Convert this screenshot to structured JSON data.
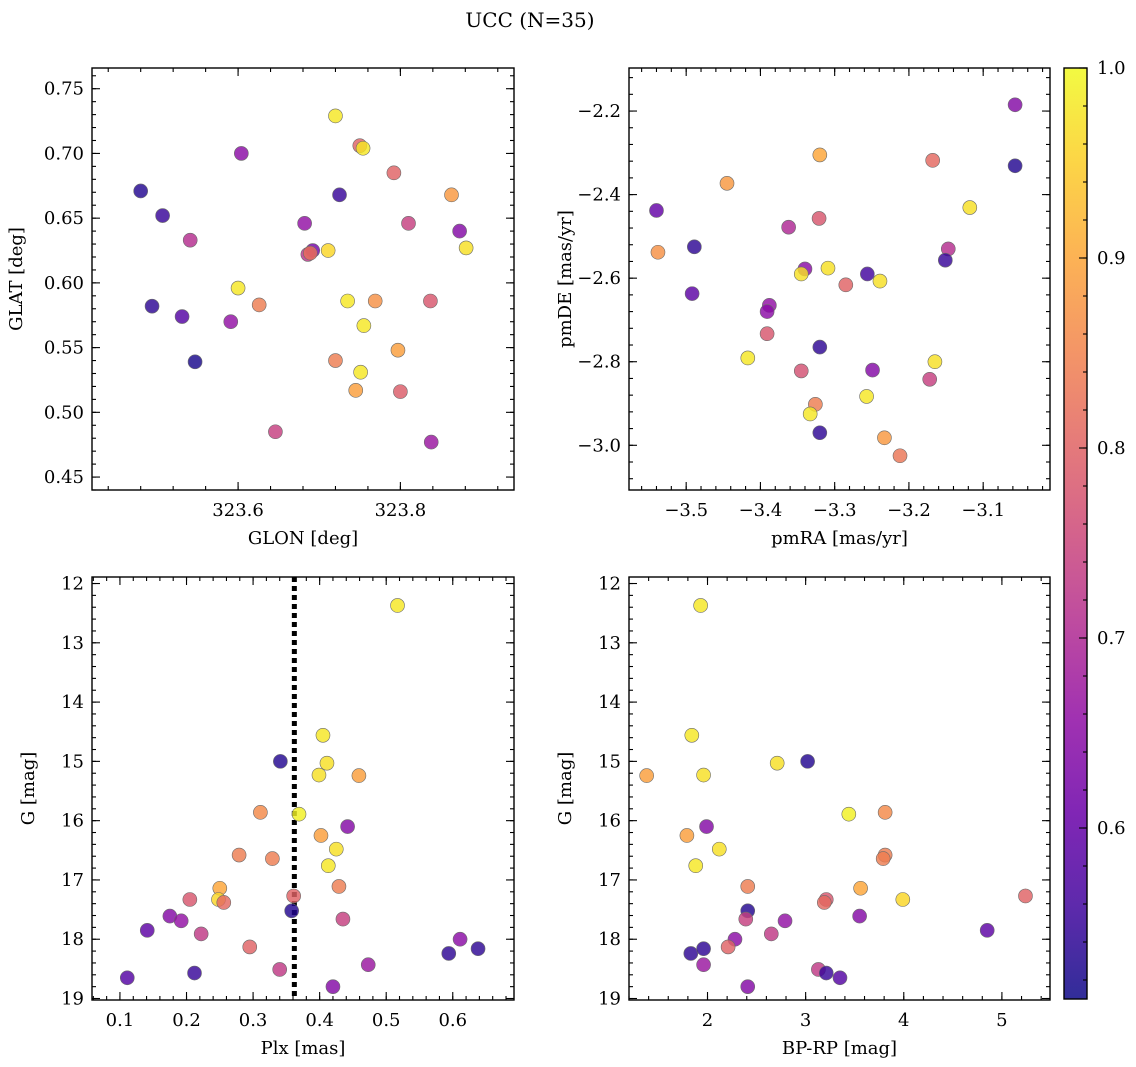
{
  "figure": {
    "title": "UCC (N=35)",
    "colorbar": {
      "colormap": "plasma",
      "range": [
        0.51,
        1.0
      ],
      "ticks": [
        0.6,
        0.7,
        0.8,
        0.9,
        1.0
      ],
      "tick_labels": [
        "0.6",
        "0.7",
        "0.8",
        "0.9",
        "1.0"
      ]
    }
  },
  "chart_data": [
    {
      "type": "scatter",
      "panel": "top-left",
      "xlabel": "GLON [deg]",
      "ylabel": "GLAT [deg]",
      "xlim": [
        323.42,
        323.94
      ],
      "ylim": [
        0.44,
        0.766
      ],
      "x_ticks": [
        323.6,
        323.8
      ],
      "x_tick_labels": [
        "323.6",
        "323.8"
      ],
      "y_ticks": [
        0.45,
        0.5,
        0.55,
        0.6,
        0.65,
        0.7,
        0.75
      ],
      "y_tick_labels": [
        "0.45",
        "0.50",
        "0.55",
        "0.60",
        "0.65",
        "0.70",
        "0.75"
      ],
      "color_value_key": "prob",
      "points": [
        {
          "x": 323.48,
          "y": 0.671,
          "prob": 0.53
        },
        {
          "x": 323.507,
          "y": 0.652,
          "prob": 0.55
        },
        {
          "x": 323.494,
          "y": 0.582,
          "prob": 0.54
        },
        {
          "x": 323.541,
          "y": 0.633,
          "prob": 0.71
        },
        {
          "x": 323.531,
          "y": 0.574,
          "prob": 0.58
        },
        {
          "x": 323.547,
          "y": 0.539,
          "prob": 0.52
        },
        {
          "x": 323.604,
          "y": 0.7,
          "prob": 0.65
        },
        {
          "x": 323.6,
          "y": 0.596,
          "prob": 0.98
        },
        {
          "x": 323.591,
          "y": 0.57,
          "prob": 0.66
        },
        {
          "x": 323.626,
          "y": 0.583,
          "prob": 0.84
        },
        {
          "x": 323.646,
          "y": 0.485,
          "prob": 0.74
        },
        {
          "x": 323.72,
          "y": 0.729,
          "prob": 0.98
        },
        {
          "x": 323.75,
          "y": 0.706,
          "prob": 0.8
        },
        {
          "x": 323.754,
          "y": 0.704,
          "prob": 0.98
        },
        {
          "x": 323.725,
          "y": 0.668,
          "prob": 0.55
        },
        {
          "x": 323.682,
          "y": 0.646,
          "prob": 0.66
        },
        {
          "x": 323.692,
          "y": 0.625,
          "prob": 0.62
        },
        {
          "x": 323.686,
          "y": 0.622,
          "prob": 0.72
        },
        {
          "x": 323.689,
          "y": 0.623,
          "prob": 0.82
        },
        {
          "x": 323.711,
          "y": 0.625,
          "prob": 0.96
        },
        {
          "x": 323.735,
          "y": 0.586,
          "prob": 0.98
        },
        {
          "x": 323.755,
          "y": 0.567,
          "prob": 0.98
        },
        {
          "x": 323.72,
          "y": 0.54,
          "prob": 0.84
        },
        {
          "x": 323.751,
          "y": 0.531,
          "prob": 0.98
        },
        {
          "x": 323.745,
          "y": 0.517,
          "prob": 0.89
        },
        {
          "x": 323.769,
          "y": 0.586,
          "prob": 0.87
        },
        {
          "x": 323.792,
          "y": 0.685,
          "prob": 0.8
        },
        {
          "x": 323.81,
          "y": 0.646,
          "prob": 0.74
        },
        {
          "x": 323.797,
          "y": 0.548,
          "prob": 0.89
        },
        {
          "x": 323.8,
          "y": 0.516,
          "prob": 0.79
        },
        {
          "x": 323.837,
          "y": 0.586,
          "prob": 0.78
        },
        {
          "x": 323.838,
          "y": 0.477,
          "prob": 0.67
        },
        {
          "x": 323.863,
          "y": 0.668,
          "prob": 0.88
        },
        {
          "x": 323.873,
          "y": 0.64,
          "prob": 0.64
        },
        {
          "x": 323.881,
          "y": 0.627,
          "prob": 0.97
        }
      ]
    },
    {
      "type": "scatter",
      "panel": "top-right",
      "xlabel": "pmRA [mas/yr]",
      "ylabel": "pmDE [mas/yr]",
      "xlim": [
        -3.577,
        -3.01
      ],
      "ylim": [
        -3.107,
        -2.097
      ],
      "x_ticks": [
        -3.5,
        -3.4,
        -3.3,
        -3.2,
        -3.1
      ],
      "x_tick_labels": [
        "−3.5",
        "−3.4",
        "−3.3",
        "−3.2",
        "−3.1"
      ],
      "y_ticks": [
        -3.0,
        -2.8,
        -2.6,
        -2.4,
        -2.2
      ],
      "y_tick_labels": [
        "−3.0",
        "−2.8",
        "−2.6",
        "−2.4",
        "−2.2"
      ],
      "color_value_key": "prob",
      "points": [
        {
          "x": -3.057,
          "y": -2.185,
          "prob": 0.64
        },
        {
          "x": -3.057,
          "y": -2.331,
          "prob": 0.53
        },
        {
          "x": -3.118,
          "y": -2.431,
          "prob": 0.97
        },
        {
          "x": -3.147,
          "y": -2.53,
          "prob": 0.71
        },
        {
          "x": -3.151,
          "y": -2.557,
          "prob": 0.55
        },
        {
          "x": -3.168,
          "y": -2.318,
          "prob": 0.81
        },
        {
          "x": -3.165,
          "y": -2.8,
          "prob": 0.97
        },
        {
          "x": -3.172,
          "y": -2.842,
          "prob": 0.74
        },
        {
          "x": -3.212,
          "y": -3.025,
          "prob": 0.83
        },
        {
          "x": -3.233,
          "y": -2.982,
          "prob": 0.88
        },
        {
          "x": -3.239,
          "y": -2.607,
          "prob": 0.97
        },
        {
          "x": -3.249,
          "y": -2.82,
          "prob": 0.64
        },
        {
          "x": -3.256,
          "y": -2.59,
          "prob": 0.56
        },
        {
          "x": -3.257,
          "y": -2.883,
          "prob": 0.98
        },
        {
          "x": -3.285,
          "y": -2.616,
          "prob": 0.8
        },
        {
          "x": -3.309,
          "y": -2.576,
          "prob": 0.97
        },
        {
          "x": -3.32,
          "y": -2.305,
          "prob": 0.9
        },
        {
          "x": -3.321,
          "y": -2.457,
          "prob": 0.78
        },
        {
          "x": -3.32,
          "y": -2.765,
          "prob": 0.54
        },
        {
          "x": -3.32,
          "y": -2.97,
          "prob": 0.54
        },
        {
          "x": -3.326,
          "y": -2.902,
          "prob": 0.84
        },
        {
          "x": -3.333,
          "y": -2.925,
          "prob": 0.98
        },
        {
          "x": -3.34,
          "y": -2.578,
          "prob": 0.65
        },
        {
          "x": -3.345,
          "y": -2.59,
          "prob": 0.97
        },
        {
          "x": -3.345,
          "y": -2.822,
          "prob": 0.77
        },
        {
          "x": -3.362,
          "y": -2.478,
          "prob": 0.7
        },
        {
          "x": -3.388,
          "y": -2.665,
          "prob": 0.66
        },
        {
          "x": -3.391,
          "y": -2.68,
          "prob": 0.65
        },
        {
          "x": -3.391,
          "y": -2.733,
          "prob": 0.78
        },
        {
          "x": -3.417,
          "y": -2.791,
          "prob": 0.98
        },
        {
          "x": -3.445,
          "y": -2.373,
          "prob": 0.88
        },
        {
          "x": -3.489,
          "y": -2.525,
          "prob": 0.54
        },
        {
          "x": -3.492,
          "y": -2.637,
          "prob": 0.59
        },
        {
          "x": -3.54,
          "y": -2.438,
          "prob": 0.6
        },
        {
          "x": -3.538,
          "y": -2.538,
          "prob": 0.87
        }
      ]
    },
    {
      "type": "scatter",
      "panel": "bottom-left",
      "xlabel": "Plx [mas]",
      "ylabel": "G [mag]",
      "xlim": [
        0.058,
        0.692
      ],
      "ylim": [
        19.025,
        11.89
      ],
      "y_inverted": true,
      "x_ticks": [
        0.1,
        0.2,
        0.3,
        0.4,
        0.5,
        0.6
      ],
      "x_tick_labels": [
        "0.1",
        "0.2",
        "0.3",
        "0.4",
        "0.5",
        "0.6"
      ],
      "y_ticks": [
        12,
        13,
        14,
        15,
        16,
        17,
        18,
        19
      ],
      "y_tick_labels": [
        "12",
        "13",
        "14",
        "15",
        "16",
        "17",
        "18",
        "19"
      ],
      "vertical_line": {
        "x": 0.362,
        "style": "dotted",
        "color": "#000000"
      },
      "color_value_key": "prob",
      "points": [
        {
          "x": 0.517,
          "y": 12.37,
          "prob": 0.98
        },
        {
          "x": 0.405,
          "y": 14.56,
          "prob": 0.98
        },
        {
          "x": 0.411,
          "y": 15.03,
          "prob": 0.97
        },
        {
          "x": 0.399,
          "y": 15.23,
          "prob": 0.97
        },
        {
          "x": 0.459,
          "y": 15.24,
          "prob": 0.89
        },
        {
          "x": 0.341,
          "y": 15.0,
          "prob": 0.53
        },
        {
          "x": 0.311,
          "y": 15.86,
          "prob": 0.86
        },
        {
          "x": 0.369,
          "y": 15.89,
          "prob": 0.99
        },
        {
          "x": 0.442,
          "y": 16.1,
          "prob": 0.64
        },
        {
          "x": 0.402,
          "y": 16.25,
          "prob": 0.89
        },
        {
          "x": 0.425,
          "y": 16.48,
          "prob": 0.97
        },
        {
          "x": 0.279,
          "y": 16.58,
          "prob": 0.84
        },
        {
          "x": 0.329,
          "y": 16.64,
          "prob": 0.84
        },
        {
          "x": 0.413,
          "y": 16.76,
          "prob": 0.98
        },
        {
          "x": 0.429,
          "y": 17.11,
          "prob": 0.84
        },
        {
          "x": 0.25,
          "y": 17.14,
          "prob": 0.9
        },
        {
          "x": 0.361,
          "y": 17.27,
          "prob": 0.8
        },
        {
          "x": 0.248,
          "y": 17.33,
          "prob": 0.96
        },
        {
          "x": 0.205,
          "y": 17.33,
          "prob": 0.78
        },
        {
          "x": 0.256,
          "y": 17.38,
          "prob": 0.81
        },
        {
          "x": 0.358,
          "y": 17.52,
          "prob": 0.53
        },
        {
          "x": 0.175,
          "y": 17.61,
          "prob": 0.64
        },
        {
          "x": 0.435,
          "y": 17.66,
          "prob": 0.74
        },
        {
          "x": 0.192,
          "y": 17.69,
          "prob": 0.66
        },
        {
          "x": 0.141,
          "y": 17.85,
          "prob": 0.59
        },
        {
          "x": 0.222,
          "y": 17.91,
          "prob": 0.73
        },
        {
          "x": 0.611,
          "y": 18.0,
          "prob": 0.65
        },
        {
          "x": 0.295,
          "y": 18.13,
          "prob": 0.8
        },
        {
          "x": 0.638,
          "y": 18.16,
          "prob": 0.54
        },
        {
          "x": 0.594,
          "y": 18.24,
          "prob": 0.54
        },
        {
          "x": 0.473,
          "y": 18.43,
          "prob": 0.67
        },
        {
          "x": 0.34,
          "y": 18.51,
          "prob": 0.73
        },
        {
          "x": 0.212,
          "y": 18.57,
          "prob": 0.55
        },
        {
          "x": 0.111,
          "y": 18.65,
          "prob": 0.58
        },
        {
          "x": 0.42,
          "y": 18.8,
          "prob": 0.64
        }
      ]
    },
    {
      "type": "scatter",
      "panel": "bottom-right",
      "xlabel": "BP-RP [mag]",
      "ylabel": "G [mag]",
      "xlim": [
        1.2,
        5.49
      ],
      "ylim": [
        19.025,
        11.89
      ],
      "y_inverted": true,
      "x_ticks": [
        2,
        3,
        4,
        5
      ],
      "x_tick_labels": [
        "2",
        "3",
        "4",
        "5"
      ],
      "y_ticks": [
        12,
        13,
        14,
        15,
        16,
        17,
        18,
        19
      ],
      "y_tick_labels": [
        "12",
        "13",
        "14",
        "15",
        "16",
        "17",
        "18",
        "19"
      ],
      "color_value_key": "prob",
      "points": [
        {
          "x": 1.93,
          "y": 12.37,
          "prob": 0.98
        },
        {
          "x": 1.84,
          "y": 14.56,
          "prob": 0.98
        },
        {
          "x": 1.96,
          "y": 15.23,
          "prob": 0.97
        },
        {
          "x": 2.71,
          "y": 15.03,
          "prob": 0.97
        },
        {
          "x": 3.02,
          "y": 15.0,
          "prob": 0.53
        },
        {
          "x": 1.38,
          "y": 15.24,
          "prob": 0.89
        },
        {
          "x": 3.44,
          "y": 15.89,
          "prob": 0.99
        },
        {
          "x": 3.81,
          "y": 15.86,
          "prob": 0.86
        },
        {
          "x": 1.99,
          "y": 16.1,
          "prob": 0.64
        },
        {
          "x": 1.79,
          "y": 16.25,
          "prob": 0.89
        },
        {
          "x": 2.12,
          "y": 16.48,
          "prob": 0.97
        },
        {
          "x": 1.88,
          "y": 16.76,
          "prob": 0.98
        },
        {
          "x": 3.81,
          "y": 16.58,
          "prob": 0.84
        },
        {
          "x": 3.79,
          "y": 16.64,
          "prob": 0.84
        },
        {
          "x": 2.41,
          "y": 17.11,
          "prob": 0.84
        },
        {
          "x": 3.56,
          "y": 17.14,
          "prob": 0.9
        },
        {
          "x": 3.99,
          "y": 17.33,
          "prob": 0.96
        },
        {
          "x": 3.21,
          "y": 17.33,
          "prob": 0.78
        },
        {
          "x": 3.19,
          "y": 17.38,
          "prob": 0.81
        },
        {
          "x": 5.24,
          "y": 17.27,
          "prob": 0.8
        },
        {
          "x": 2.41,
          "y": 17.52,
          "prob": 0.53
        },
        {
          "x": 2.39,
          "y": 17.66,
          "prob": 0.74
        },
        {
          "x": 2.79,
          "y": 17.69,
          "prob": 0.66
        },
        {
          "x": 3.55,
          "y": 17.61,
          "prob": 0.64
        },
        {
          "x": 4.85,
          "y": 17.85,
          "prob": 0.59
        },
        {
          "x": 2.65,
          "y": 17.91,
          "prob": 0.73
        },
        {
          "x": 2.28,
          "y": 18.0,
          "prob": 0.65
        },
        {
          "x": 2.21,
          "y": 18.13,
          "prob": 0.8
        },
        {
          "x": 1.83,
          "y": 18.24,
          "prob": 0.54
        },
        {
          "x": 1.96,
          "y": 18.16,
          "prob": 0.54
        },
        {
          "x": 1.96,
          "y": 18.43,
          "prob": 0.67
        },
        {
          "x": 3.13,
          "y": 18.51,
          "prob": 0.73
        },
        {
          "x": 3.21,
          "y": 18.57,
          "prob": 0.55
        },
        {
          "x": 3.35,
          "y": 18.65,
          "prob": 0.58
        },
        {
          "x": 2.41,
          "y": 18.8,
          "prob": 0.64
        }
      ]
    }
  ]
}
